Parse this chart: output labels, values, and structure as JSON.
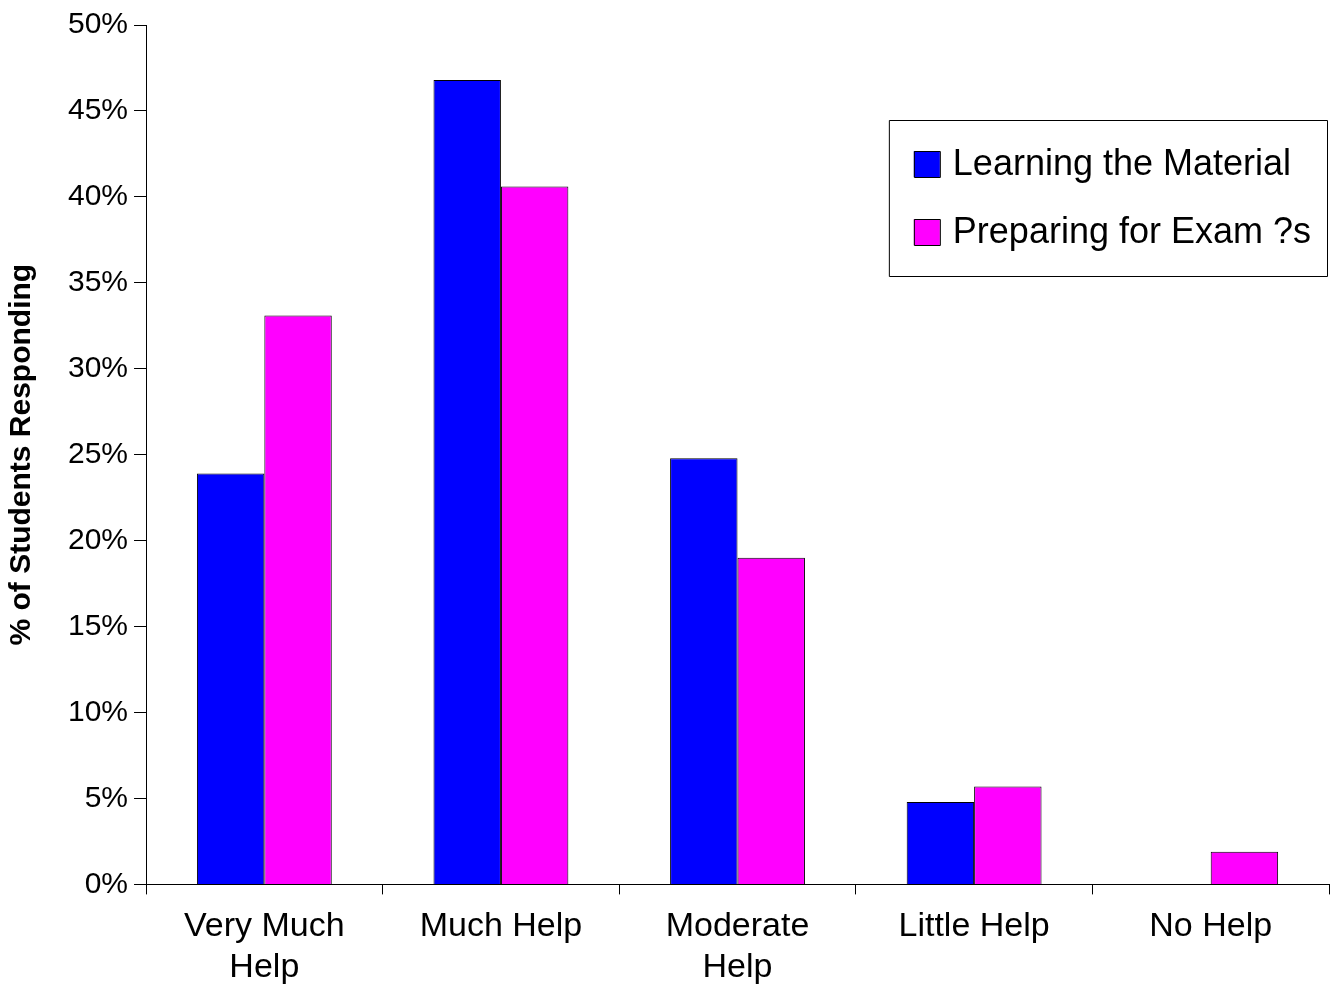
{
  "chart_data": {
    "type": "bar",
    "ylabel": "% of Students Responding",
    "categories": [
      "Very Much Help",
      "Much Help",
      "Moderate Help",
      "Little Help",
      "No Help"
    ],
    "series": [
      {
        "name": "Learning the Material",
        "color": "#0000ff",
        "values": [
          23.9,
          46.8,
          24.8,
          4.8,
          0
        ]
      },
      {
        "name": "Preparing for Exam ?s",
        "color": "#ff00ff",
        "values": [
          33.1,
          40.6,
          19.0,
          5.7,
          1.9
        ]
      }
    ],
    "ylim": [
      0,
      50
    ],
    "yticks": [
      {
        "value": 0,
        "label": "0%"
      },
      {
        "value": 5,
        "label": "5%"
      },
      {
        "value": 10,
        "label": "10%"
      },
      {
        "value": 15,
        "label": "15%"
      },
      {
        "value": 20,
        "label": "20%"
      },
      {
        "value": 25,
        "label": "25%"
      },
      {
        "value": 30,
        "label": "30%"
      },
      {
        "value": 35,
        "label": "35%"
      },
      {
        "value": 40,
        "label": "40%"
      },
      {
        "value": 45,
        "label": "45%"
      },
      {
        "value": 50,
        "label": "50%"
      }
    ],
    "grid": false,
    "legend": "top right"
  }
}
